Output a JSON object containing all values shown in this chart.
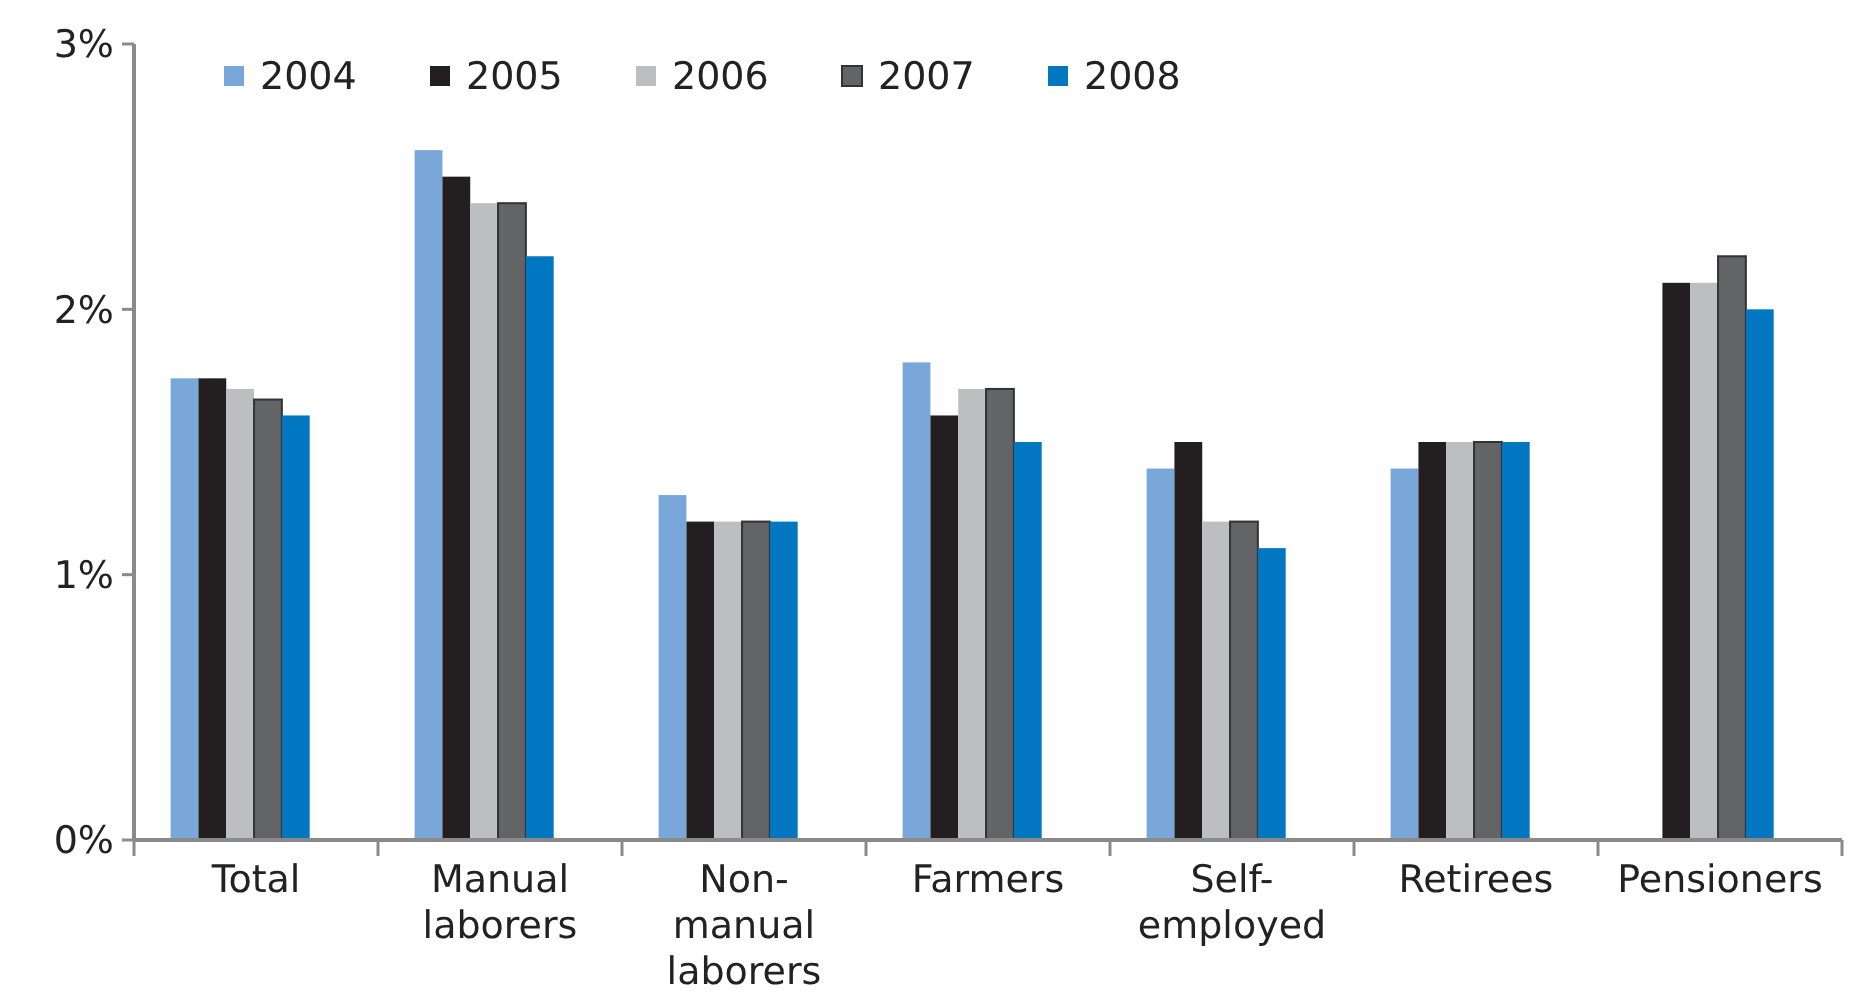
{
  "chart_data": {
    "type": "bar",
    "categories": [
      "Total",
      "Manual laborers",
      "Non-manual laborers",
      "Farmers",
      "Self-employed",
      "Retirees",
      "Pensioners"
    ],
    "series": [
      {
        "name": "2004",
        "color": "#7aa7d9",
        "values": [
          1.74,
          2.6,
          1.3,
          1.8,
          1.4,
          1.4,
          null
        ]
      },
      {
        "name": "2005",
        "color": "#231f20",
        "values": [
          1.74,
          2.5,
          1.2,
          1.6,
          1.5,
          1.5,
          2.1
        ]
      },
      {
        "name": "2006",
        "color": "#bcbec0",
        "values": [
          1.7,
          2.4,
          1.2,
          1.7,
          1.2,
          1.5,
          2.1
        ]
      },
      {
        "name": "2007",
        "color": "#636466",
        "values": [
          1.66,
          2.4,
          1.2,
          1.7,
          1.2,
          1.5,
          2.2
        ]
      },
      {
        "name": "2008",
        "color": "#0077c0",
        "values": [
          1.6,
          2.2,
          1.2,
          1.5,
          1.1,
          1.5,
          2.0
        ]
      }
    ],
    "ylim": [
      0,
      3
    ],
    "yticks": [
      {
        "value": 0,
        "label": "0%"
      },
      {
        "value": 1,
        "label": "1%"
      },
      {
        "value": 2,
        "label": "2%"
      },
      {
        "value": 3,
        "label": "3%"
      }
    ],
    "legend": "top left",
    "grid": false
  }
}
